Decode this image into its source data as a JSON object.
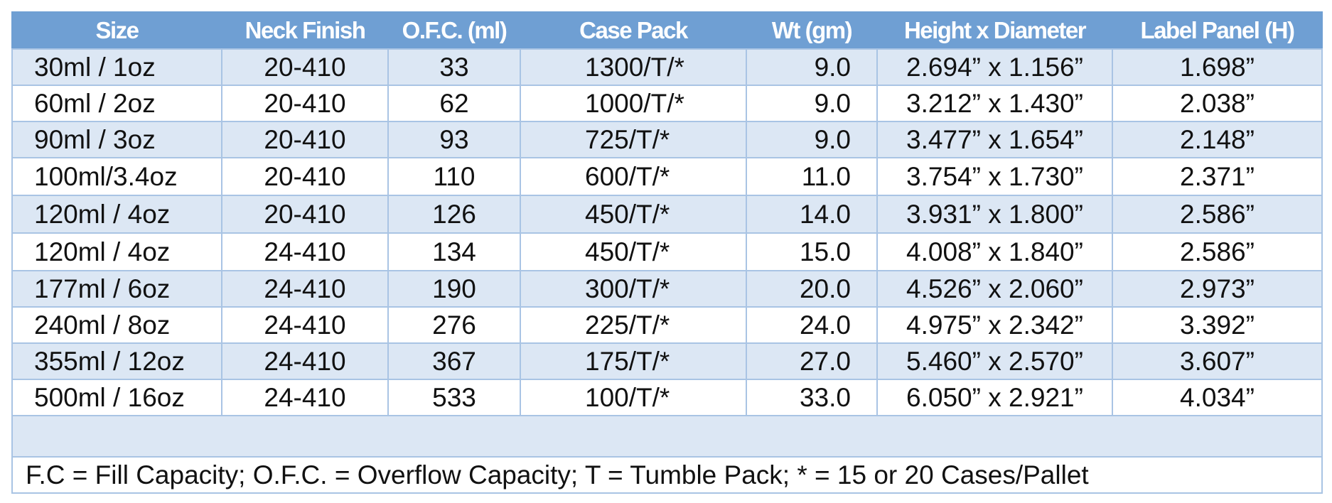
{
  "table": {
    "headers": [
      "Size",
      "Neck Finish",
      "O.F.C. (ml)",
      "Case Pack",
      "Wt (gm)",
      "Height x Diameter",
      "Label Panel (H)"
    ],
    "rows": [
      [
        "30ml / 1oz",
        "20-410",
        "33",
        "1300/T/*",
        "9.0",
        "2.694” x 1.156”",
        "1.698”"
      ],
      [
        "60ml / 2oz",
        "20-410",
        "62",
        "1000/T/*",
        "9.0",
        "3.212” x 1.430”",
        "2.038”"
      ],
      [
        "90ml / 3oz",
        "20-410",
        "93",
        "725/T/*",
        "9.0",
        "3.477” x 1.654”",
        "2.148”"
      ],
      [
        "100ml/3.4oz",
        "20-410",
        "110",
        "600/T/*",
        "11.0",
        "3.754” x 1.730”",
        "2.371”"
      ],
      [
        "120ml / 4oz",
        "20-410",
        "126",
        "450/T/*",
        "14.0",
        "3.931” x 1.800”",
        "2.586”"
      ],
      [
        "120ml / 4oz",
        "24-410",
        "134",
        "450/T/*",
        "15.0",
        "4.008” x 1.840”",
        "2.586”"
      ],
      [
        "177ml / 6oz",
        "24-410",
        "190",
        "300/T/*",
        "20.0",
        "4.526” x 2.060”",
        "2.973”"
      ],
      [
        "240ml / 8oz",
        "24-410",
        "276",
        "225/T/*",
        "24.0",
        "4.975” x 2.342”",
        "3.392”"
      ],
      [
        "355ml / 12oz",
        "24-410",
        "367",
        "175/T/*",
        "27.0",
        "5.460” x 2.570”",
        "3.607”"
      ],
      [
        "500ml / 16oz",
        "24-410",
        "533",
        "100/T/*",
        "33.0",
        "6.050” x 2.921”",
        "4.034”"
      ]
    ],
    "footnote": "F.C = Fill Capacity; O.F.C. = Overflow Capacity; T = Tumble Pack; * = 15 or 20 Cases/Pallet"
  },
  "colors": {
    "header_bg": "#6f9fd3",
    "header_text": "#ffffff",
    "row_alt_bg": "#dce7f4",
    "row_bg": "#ffffff",
    "border": "#a9c4e4"
  }
}
